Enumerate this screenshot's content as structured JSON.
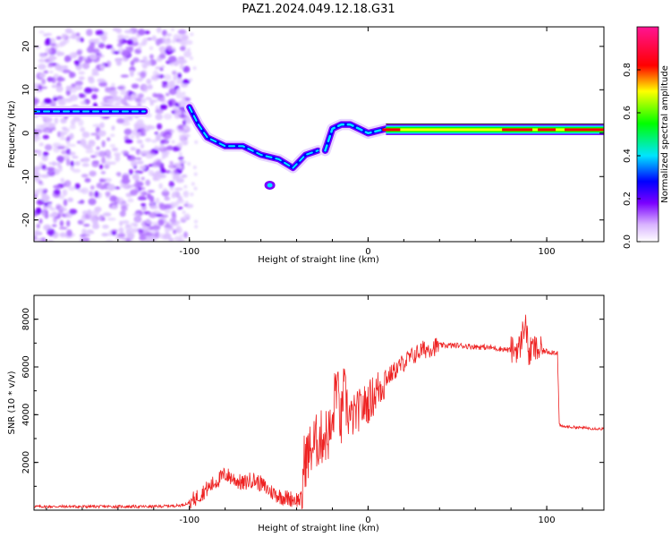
{
  "title": "PAZ1.2024.049.12.18.G31",
  "chart_data": [
    {
      "type": "heatmap",
      "xlabel": "Height of straight line (km)",
      "ylabel": "Frequency (Hz)",
      "xlim": [
        -187,
        132
      ],
      "ylim": [
        -25,
        24.5
      ],
      "xticks": [
        -100,
        0,
        100
      ],
      "yticks": [
        -20,
        -10,
        0,
        10,
        20
      ],
      "colorbar": {
        "label": "Normalized spectral amplitude",
        "range": [
          0,
          1
        ],
        "ticks": [
          0.0,
          0.2,
          0.4,
          0.6,
          0.8
        ],
        "colormap": [
          "#ffffff",
          "#d9b3ff",
          "#7a00ff",
          "#0000ff",
          "#00e5ff",
          "#00ff00",
          "#ffff00",
          "#ff0000",
          "#ff1493"
        ]
      },
      "features": [
        {
          "segment": "noise region",
          "x_range": [
            -187,
            -100
          ],
          "freq_range": [
            -25,
            24
          ],
          "amplitude": "low"
        },
        {
          "segment": "tone near 5 Hz",
          "x_range": [
            -187,
            -125
          ],
          "freq": 5,
          "amplitude": 0.35
        },
        {
          "segment": "descending trace",
          "points": [
            [
              -100,
              6
            ],
            [
              -95,
              2
            ],
            [
              -90,
              -1
            ],
            [
              -80,
              -3
            ],
            [
              -70,
              -3
            ],
            [
              -60,
              -5
            ],
            [
              -50,
              -6
            ],
            [
              -42,
              -8
            ],
            [
              -35,
              -5
            ],
            [
              -28,
              -4
            ]
          ],
          "amplitude": 0.35
        },
        {
          "segment": "isolated blob",
          "points": [
            [
              -55,
              -12
            ]
          ],
          "amplitude": 0.3
        },
        {
          "segment": "rising trace",
          "points": [
            [
              -24,
              -4
            ],
            [
              -20,
              1
            ],
            [
              -15,
              2
            ],
            [
              -10,
              2
            ],
            [
              -5,
              1
            ],
            [
              0,
              0
            ],
            [
              10,
              1
            ]
          ],
          "amplitude": 0.5
        },
        {
          "segment": "stable tone",
          "x_range": [
            10,
            132
          ],
          "freq": 0.8,
          "amplitude": 0.55
        }
      ]
    },
    {
      "type": "line",
      "xlabel": "Height of straight line (km)",
      "ylabel": "SNR (10 * v/v)",
      "xlim": [
        -187,
        132
      ],
      "ylim": [
        0,
        9000
      ],
      "xticks": [
        -100,
        0,
        100
      ],
      "yticks": [
        2000,
        4000,
        6000,
        8000
      ],
      "color": "#ee2222",
      "series": [
        {
          "x": [
            -187,
            -150,
            -120,
            -105,
            -100,
            -95,
            -90,
            -85,
            -80,
            -75,
            -70,
            -65,
            -60,
            -55,
            -50,
            -45,
            -40,
            -37,
            -36,
            -30,
            -25,
            -20,
            -18,
            -15,
            -14,
            -10,
            -5,
            0,
            5,
            10,
            20,
            30,
            40,
            50,
            60,
            70,
            80,
            85,
            88,
            90,
            92,
            95,
            100,
            106,
            107,
            108,
            110,
            120,
            132
          ],
          "y": [
            150,
            150,
            150,
            200,
            300,
            600,
            900,
            1200,
            1500,
            1300,
            1100,
            1300,
            1100,
            800,
            600,
            500,
            450,
            450,
            2000,
            2800,
            3100,
            3300,
            5500,
            3500,
            5000,
            3800,
            4200,
            4500,
            5000,
            5500,
            6200,
            6700,
            6900,
            6900,
            6850,
            6800,
            6700,
            6800,
            8000,
            6500,
            6800,
            6700,
            6650,
            6600,
            3600,
            3500,
            3500,
            3450,
            3400
          ]
        }
      ]
    }
  ]
}
